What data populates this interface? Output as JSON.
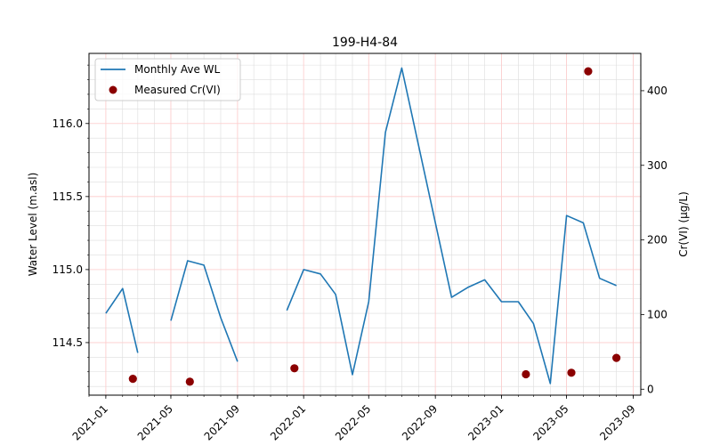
{
  "chart_data": {
    "type": "line",
    "title": "199-H4-84",
    "ylabel_left": "Water Level (m.asl)",
    "ylabel_right": "Cr(VI) (μg/L)",
    "xlabel": "",
    "xlim": [
      "2020-12-01",
      "2023-09-15"
    ],
    "ylim_left": [
      114.14,
      116.48
    ],
    "ylim_right": [
      -8,
      450
    ],
    "x_ticks": [
      "2021-01",
      "2021-05",
      "2021-09",
      "2022-01",
      "2022-05",
      "2022-09",
      "2023-01",
      "2023-05",
      "2023-09"
    ],
    "y_ticks_left": [
      "114.5",
      "115.0",
      "115.5",
      "116.0"
    ],
    "y_ticks_right": [
      "0",
      "100",
      "200",
      "300",
      "400"
    ],
    "grid": true,
    "legend_position": "top-left",
    "series": [
      {
        "name": "Monthly Ave WL",
        "axis": "left",
        "color": "#1f77b4",
        "segments": [
          [
            [
              "2021-01-01",
              114.7
            ],
            [
              "2021-02-01",
              114.87
            ],
            [
              "2021-03-01",
              114.43
            ]
          ],
          [
            [
              "2021-05-01",
              114.65
            ],
            [
              "2021-06-01",
              115.06
            ],
            [
              "2021-07-01",
              115.03
            ],
            [
              "2021-08-01",
              114.67
            ],
            [
              "2021-09-01",
              114.37
            ]
          ],
          [
            [
              "2021-12-01",
              114.72
            ],
            [
              "2022-01-01",
              115.0
            ],
            [
              "2022-02-01",
              114.97
            ],
            [
              "2022-03-01",
              114.83
            ],
            [
              "2022-04-01",
              114.28
            ],
            [
              "2022-05-01",
              114.78
            ],
            [
              "2022-06-01",
              115.94
            ],
            [
              "2022-07-01",
              116.38
            ],
            [
              "2022-08-01",
              115.85
            ],
            [
              "2022-09-01",
              115.32
            ],
            [
              "2022-10-01",
              114.81
            ],
            [
              "2022-11-01",
              114.88
            ],
            [
              "2022-12-01",
              114.93
            ],
            [
              "2023-01-01",
              114.78
            ],
            [
              "2023-02-01",
              114.78
            ],
            [
              "2023-03-01",
              114.63
            ],
            [
              "2023-04-01",
              114.22
            ],
            [
              "2023-05-01",
              115.37
            ],
            [
              "2023-06-01",
              115.32
            ],
            [
              "2023-07-01",
              114.94
            ],
            [
              "2023-08-01",
              114.89
            ]
          ]
        ]
      },
      {
        "name": "Measured Cr(VI)",
        "axis": "right",
        "color": "#8b0000",
        "points": [
          [
            "2021-02-20",
            14
          ],
          [
            "2021-06-05",
            10
          ],
          [
            "2021-12-15",
            28
          ],
          [
            "2023-02-15",
            20
          ],
          [
            "2023-05-10",
            22
          ],
          [
            "2023-06-10",
            426
          ],
          [
            "2023-08-01",
            42
          ]
        ]
      }
    ]
  }
}
